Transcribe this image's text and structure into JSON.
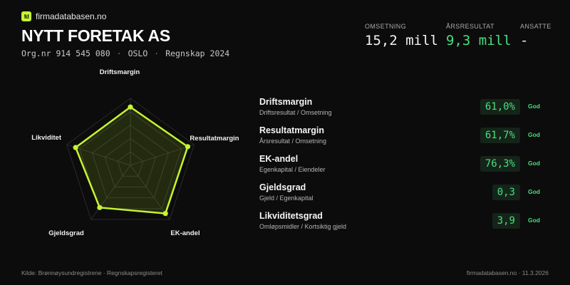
{
  "brand": {
    "logo_text": "fd",
    "name": "firmadatabasen.no"
  },
  "company": {
    "name": "NYTT FORETAK AS",
    "orgnr": "Org.nr 914 545 080",
    "city": "OSLO",
    "period": "Regnskap 2024",
    "separator": "·"
  },
  "stats": [
    {
      "label": "OMSETNING",
      "value": "15,2 mill"
    },
    {
      "label": "ÅRSRESULTAT",
      "value": "9,3 mill"
    },
    {
      "label": "ANSATTE",
      "value": "-"
    }
  ],
  "radar": {
    "axes": [
      "Driftsmargin",
      "Resultatmargin",
      "EK-andel",
      "Gjeldsgrad",
      "Likviditet"
    ],
    "scores": [
      0.87,
      0.9,
      0.89,
      0.78,
      0.86
    ],
    "colors": {
      "line": "#c6f432",
      "grid": "#2a2a2a"
    }
  },
  "metrics": [
    {
      "name": "Driftsmargin",
      "desc": "Driftsresultat / Omsetning",
      "value": "61,0%",
      "badge": "God"
    },
    {
      "name": "Resultatmargin",
      "desc": "Årsresultat / Omsetning",
      "value": "61,7%",
      "badge": "God"
    },
    {
      "name": "EK-andel",
      "desc": "Egenkapital / Eiendeler",
      "value": "76,3%",
      "badge": "God"
    },
    {
      "name": "Gjeldsgrad",
      "desc": "Gjeld / Egenkapital",
      "value": "0,3",
      "badge": "God"
    },
    {
      "name": "Likviditetsgrad",
      "desc": "Omløpsmidler / Kortsiktig gjeld",
      "value": "3,9",
      "badge": "God"
    }
  ],
  "footer": {
    "source": "Kilde: Brønnøysundregistrene · Regnskapsregisteret",
    "site_date": "firmadatabasen.no · 11.3.2026"
  },
  "colors": {
    "accent": "#c6f432",
    "positive": "#4ade80",
    "background": "#0c0c0c"
  }
}
